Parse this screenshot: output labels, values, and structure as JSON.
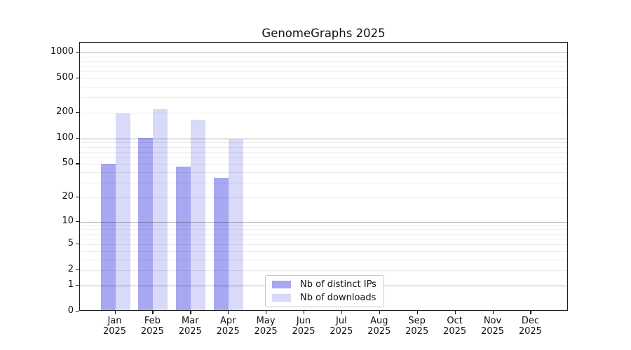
{
  "title": "GenomeGraphs 2025",
  "chart_data": {
    "type": "bar",
    "title": "GenomeGraphs 2025",
    "categories": [
      "Jan 2025",
      "Feb 2025",
      "Mar 2025",
      "Apr 2025",
      "May 2025",
      "Jun 2025",
      "Jul 2025",
      "Aug 2025",
      "Sep 2025",
      "Oct 2025",
      "Nov 2025",
      "Dec 2025"
    ],
    "series": [
      {
        "name": "Nb of distinct IPs",
        "color": "#a7a7f2",
        "values": [
          49,
          97,
          45,
          33,
          null,
          null,
          null,
          null,
          null,
          null,
          null,
          null
        ]
      },
      {
        "name": "Nb of downloads",
        "color": "#d9d9f9",
        "values": [
          188,
          210,
          160,
          94,
          null,
          null,
          null,
          null,
          null,
          null,
          null,
          null
        ]
      }
    ],
    "y_scale": "log10(1+y)",
    "y_ticks": [
      0,
      1,
      2,
      5,
      10,
      20,
      50,
      100,
      200,
      500,
      1000
    ],
    "y_minor_gridlines": [
      2,
      3,
      4,
      5,
      6,
      7,
      8,
      9,
      20,
      30,
      40,
      50,
      60,
      70,
      80,
      90,
      200,
      300,
      400,
      500,
      600,
      700,
      800,
      900
    ],
    "y_major_gridlines": [
      1,
      10,
      100,
      1000
    ],
    "ylim": [
      0,
      1300
    ],
    "grid": "horizontal only",
    "legend_position": "inside bottom-center"
  },
  "colors": {
    "distinct_ips": "#a7a7f2",
    "downloads": "#d9d9f9",
    "grid_minor": "#ebebeb",
    "grid_major": "#b3b3b3",
    "axis": "#1a1a1a",
    "background": "#ffffff"
  }
}
